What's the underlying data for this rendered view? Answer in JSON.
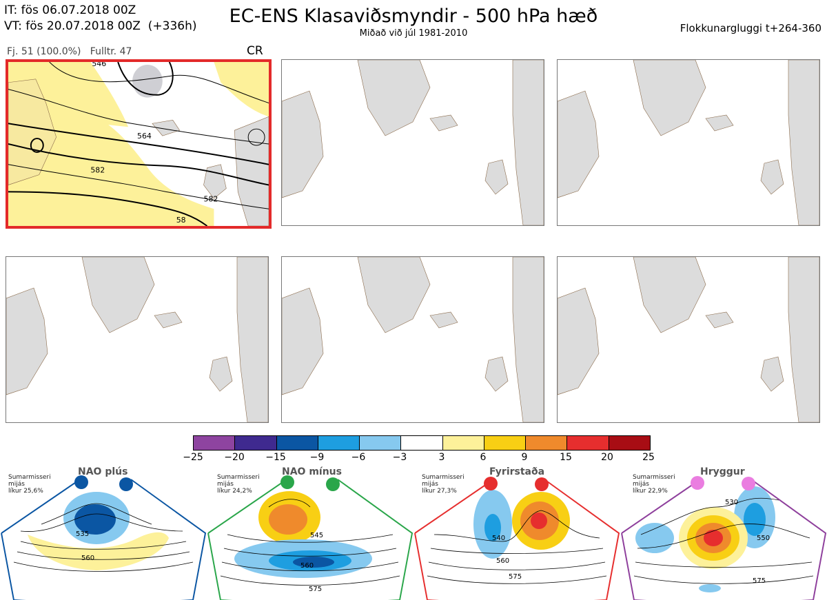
{
  "header": {
    "init_line": "IT: fös 06.07.2018 00Z",
    "valid_line": "VT: fös 20.07.2018 00Z  (+336h)",
    "title": "EC-ENS Klasaviðsmyndir - 500 hPa hæð",
    "subtitle": "Miðað við júl 1981-2010",
    "window": "Flokkunargluggi t+264-360"
  },
  "main_panel": {
    "members": "Fj. 51 (100.0%)",
    "representative": "Fulltr. 47",
    "regime_code": "CR",
    "contour_labels": [
      "546",
      "564",
      "582",
      "582",
      "58"
    ]
  },
  "colorbar": {
    "ticks": [
      "−25",
      "−20",
      "−15",
      "−9",
      "−6",
      "−3",
      "3",
      "6",
      "9",
      "15",
      "20",
      "25"
    ],
    "colors": [
      "#8e44a0",
      "#3f2a8f",
      "#0b56a3",
      "#1e9ee0",
      "#86c9ef",
      "#ffffff",
      "#fdf19a",
      "#f8cf14",
      "#ef8a2c",
      "#e62e2e",
      "#a80d14"
    ]
  },
  "regimes": [
    {
      "name": "NAO plús",
      "season": "Sumarmisseri",
      "avg": "mijás",
      "prob": "líkur 25,6%",
      "color": "#0b56a3",
      "labels": [
        "535",
        "560"
      ]
    },
    {
      "name": "NAO mínus",
      "season": "Sumarmisseri",
      "avg": "mijás",
      "prob": "líkur 24,2%",
      "color": "#2aa64a",
      "labels": [
        "545",
        "560",
        "575"
      ]
    },
    {
      "name": "Fyrirstaða",
      "season": "Sumarmisseri",
      "avg": "mijás",
      "prob": "líkur 27,3%",
      "color": "#e62e2e",
      "labels": [
        "540",
        "560",
        "575"
      ]
    },
    {
      "name": "Hryggur",
      "season": "Sumarmisseri",
      "avg": "mijás",
      "prob": "líkur 22,9%",
      "color": "#8e3f9c",
      "labels": [
        "530",
        "550",
        "575"
      ]
    }
  ]
}
